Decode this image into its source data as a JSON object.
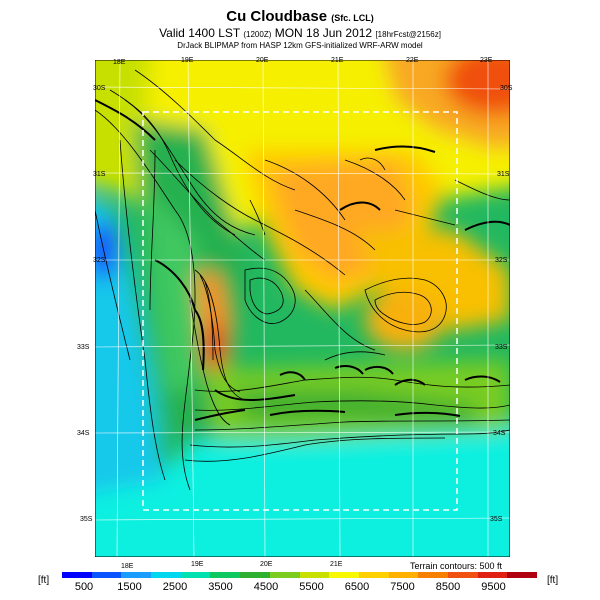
{
  "title": {
    "main": "Cu Cloudbase",
    "sub": "(Sfc. LCL)"
  },
  "valid": {
    "text": "Valid 1400 LST",
    "code": "(1200Z)",
    "date": "MON 18 Jun 2012",
    "tail": "[18hrFcst@2156z]"
  },
  "credit": "DrJack BLIPMAP from HASP 12km GFS-initialized WRF-ARW model",
  "lon_labels_top": [
    "18E",
    "19E",
    "20E",
    "21E",
    "22E",
    "23E"
  ],
  "lon_labels_bottom": [
    "18E",
    "19E",
    "20E",
    "21E"
  ],
  "lat_labels_left": [
    "30S",
    "31S",
    "32S",
    "33S",
    "34S",
    "35S"
  ],
  "lat_labels_right": [
    "30S",
    "31S",
    "32S",
    "33S",
    "34S",
    "35S"
  ],
  "terrain_note": "Terrain contours: 500 ft",
  "units_left": "[ft]",
  "units_right": "[ft]",
  "colorbar": {
    "colors": [
      "#0000ff",
      "#0a55ff",
      "#1a9dff",
      "#00d8f0",
      "#00e0b0",
      "#10c860",
      "#30b030",
      "#7ccc20",
      "#c8e000",
      "#f8f800",
      "#ffd000",
      "#ffb000",
      "#f88000",
      "#f05010",
      "#e02010",
      "#b00010"
    ],
    "ticks": [
      "500",
      "1500",
      "2500",
      "3500",
      "4500",
      "5500",
      "6500",
      "7500",
      "8500",
      "9500"
    ]
  }
}
